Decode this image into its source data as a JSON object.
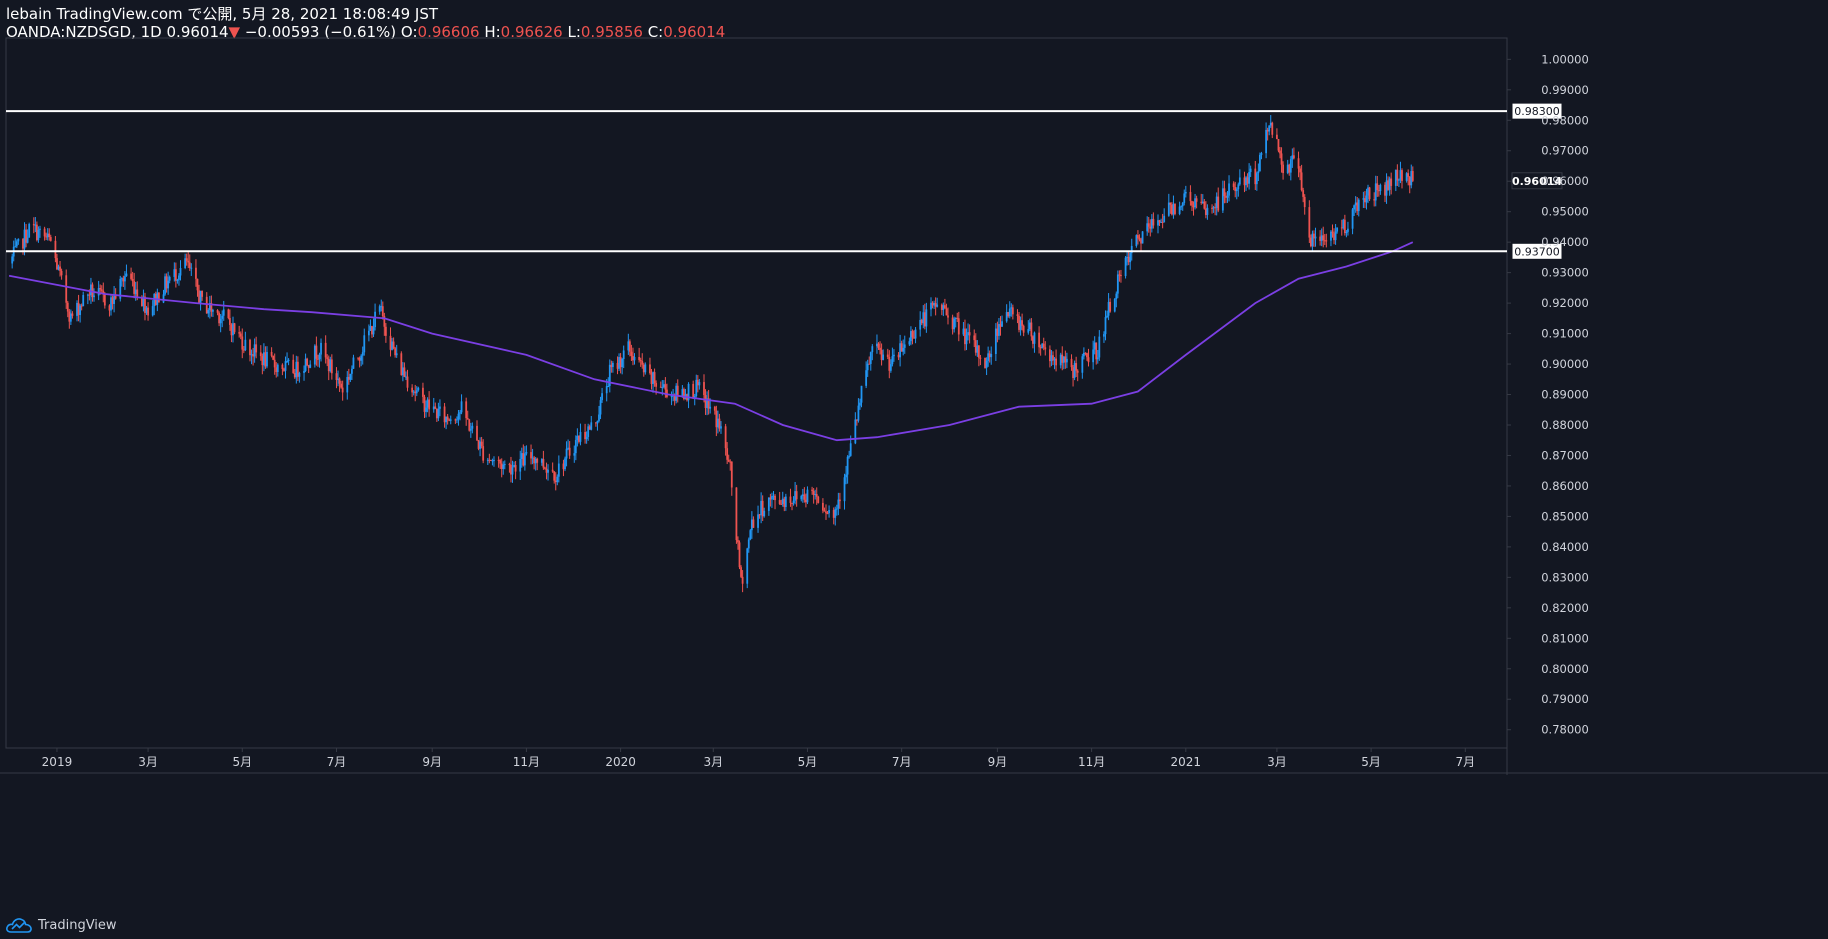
{
  "header": {
    "line1": "lebain TradingView.com で公開, 5月 28, 2021 18:08:49 JST",
    "symbol_text": "OANDA:NZDSGD, 1D 0.96014",
    "down_icon": "▼",
    "change_text": " −0.00593 (−0.61%)",
    "o_label": " O:",
    "o_value": "0.96606",
    "h_label": " H:",
    "h_value": "0.96626",
    "l_label": " L:",
    "l_value": "0.95856",
    "c_label": " C:",
    "c_value": "0.96014"
  },
  "footer": {
    "logo_icon": "tradingview-cloud-logo",
    "brand": "TradingView"
  },
  "colors": {
    "background": "#131722",
    "up": "#2196f3",
    "down": "#ef5350",
    "ma": "#7b3fe4",
    "hline": "#ffffff",
    "axis_text": "#d1d4dc",
    "border": "#363a45"
  },
  "chart_data": {
    "type": "candlestick",
    "symbol": "OANDA:NZDSGD",
    "interval": "1D",
    "ylim": [
      0.774,
      1.007
    ],
    "xlim": [
      "2018-11-29",
      "2021-07-28"
    ],
    "y_ticks": [
      "0.78000",
      "0.79000",
      "0.80000",
      "0.81000",
      "0.82000",
      "0.83000",
      "0.84000",
      "0.85000",
      "0.86000",
      "0.87000",
      "0.88000",
      "0.89000",
      "0.90000",
      "0.91000",
      "0.92000",
      "0.93000",
      "0.94000",
      "0.95000",
      "0.96000",
      "0.97000",
      "0.98000",
      "0.99000",
      "1.00000"
    ],
    "x_ticks": [
      {
        "date": "2019-01-01",
        "label": "2019"
      },
      {
        "date": "2019-03-01",
        "label": "3月"
      },
      {
        "date": "2019-05-01",
        "label": "5月"
      },
      {
        "date": "2019-07-01",
        "label": "7月"
      },
      {
        "date": "2019-09-01",
        "label": "9月"
      },
      {
        "date": "2019-11-01",
        "label": "11月"
      },
      {
        "date": "2020-01-01",
        "label": "2020"
      },
      {
        "date": "2020-03-01",
        "label": "3月"
      },
      {
        "date": "2020-05-01",
        "label": "5月"
      },
      {
        "date": "2020-07-01",
        "label": "7月"
      },
      {
        "date": "2020-09-01",
        "label": "9月"
      },
      {
        "date": "2020-11-01",
        "label": "11月"
      },
      {
        "date": "2021-01-01",
        "label": "2021"
      },
      {
        "date": "2021-03-01",
        "label": "3月"
      },
      {
        "date": "2021-05-01",
        "label": "5月"
      },
      {
        "date": "2021-07-01",
        "label": "7月"
      }
    ],
    "horizontal_lines": [
      {
        "value": 0.983,
        "label": "0.98300"
      },
      {
        "value": 0.937,
        "label": "0.93700"
      }
    ],
    "last_price": {
      "value": 0.96014,
      "label": "0.96014"
    },
    "anchors": [
      [
        "2018-12-01",
        0.933
      ],
      [
        "2018-12-15",
        0.945
      ],
      [
        "2018-12-28",
        0.94
      ],
      [
        "2019-01-10",
        0.915
      ],
      [
        "2019-01-22",
        0.924
      ],
      [
        "2019-02-05",
        0.92
      ],
      [
        "2019-02-15",
        0.93
      ],
      [
        "2019-03-01",
        0.918
      ],
      [
        "2019-03-15",
        0.928
      ],
      [
        "2019-03-26",
        0.933
      ],
      [
        "2019-04-05",
        0.92
      ],
      [
        "2019-04-20",
        0.915
      ],
      [
        "2019-05-05",
        0.905
      ],
      [
        "2019-05-20",
        0.9
      ],
      [
        "2019-06-05",
        0.898
      ],
      [
        "2019-06-20",
        0.905
      ],
      [
        "2019-07-05",
        0.892
      ],
      [
        "2019-07-20",
        0.908
      ],
      [
        "2019-07-29",
        0.918
      ],
      [
        "2019-08-10",
        0.9
      ],
      [
        "2019-08-25",
        0.888
      ],
      [
        "2019-09-10",
        0.882
      ],
      [
        "2019-09-20",
        0.885
      ],
      [
        "2019-10-05",
        0.87
      ],
      [
        "2019-10-20",
        0.866
      ],
      [
        "2019-11-05",
        0.87
      ],
      [
        "2019-11-20",
        0.864
      ],
      [
        "2019-12-05",
        0.876
      ],
      [
        "2019-12-15",
        0.88
      ],
      [
        "2019-12-25",
        0.897
      ],
      [
        "2020-01-06",
        0.905
      ],
      [
        "2020-01-20",
        0.895
      ],
      [
        "2020-02-05",
        0.89
      ],
      [
        "2020-02-20",
        0.892
      ],
      [
        "2020-03-05",
        0.88
      ],
      [
        "2020-03-12",
        0.865
      ],
      [
        "2020-03-19",
        0.828
      ],
      [
        "2020-03-26",
        0.848
      ],
      [
        "2020-04-05",
        0.855
      ],
      [
        "2020-04-20",
        0.856
      ],
      [
        "2020-05-05",
        0.858
      ],
      [
        "2020-05-18",
        0.85
      ],
      [
        "2020-05-28",
        0.87
      ],
      [
        "2020-06-05",
        0.89
      ],
      [
        "2020-06-12",
        0.905
      ],
      [
        "2020-06-25",
        0.9
      ],
      [
        "2020-07-10",
        0.912
      ],
      [
        "2020-07-25",
        0.92
      ],
      [
        "2020-08-10",
        0.91
      ],
      [
        "2020-08-25",
        0.9
      ],
      [
        "2020-09-05",
        0.918
      ],
      [
        "2020-09-20",
        0.912
      ],
      [
        "2020-10-05",
        0.903
      ],
      [
        "2020-10-20",
        0.898
      ],
      [
        "2020-11-05",
        0.905
      ],
      [
        "2020-11-15",
        0.923
      ],
      [
        "2020-11-30",
        0.94
      ],
      [
        "2020-12-15",
        0.948
      ],
      [
        "2021-01-01",
        0.955
      ],
      [
        "2021-01-15",
        0.95
      ],
      [
        "2021-02-01",
        0.958
      ],
      [
        "2021-02-15",
        0.962
      ],
      [
        "2021-02-25",
        0.98
      ],
      [
        "2021-03-05",
        0.965
      ],
      [
        "2021-03-15",
        0.967
      ],
      [
        "2021-03-22",
        0.94
      ],
      [
        "2021-04-01",
        0.941
      ],
      [
        "2021-04-15",
        0.946
      ],
      [
        "2021-04-25",
        0.955
      ],
      [
        "2021-05-10",
        0.958
      ],
      [
        "2021-05-20",
        0.963
      ],
      [
        "2021-05-28",
        0.96
      ]
    ],
    "ma_points": [
      [
        "2018-12-01",
        0.929
      ],
      [
        "2019-02-01",
        0.923
      ],
      [
        "2019-04-01",
        0.92
      ],
      [
        "2019-05-15",
        0.918
      ],
      [
        "2019-06-15",
        0.917
      ],
      [
        "2019-08-01",
        0.915
      ],
      [
        "2019-09-01",
        0.91
      ],
      [
        "2019-11-01",
        0.903
      ],
      [
        "2019-12-15",
        0.895
      ],
      [
        "2020-02-01",
        0.89
      ],
      [
        "2020-03-15",
        0.887
      ],
      [
        "2020-04-15",
        0.88
      ],
      [
        "2020-05-20",
        0.875
      ],
      [
        "2020-06-15",
        0.876
      ],
      [
        "2020-08-01",
        0.88
      ],
      [
        "2020-09-15",
        0.886
      ],
      [
        "2020-11-01",
        0.887
      ],
      [
        "2020-12-01",
        0.891
      ],
      [
        "2021-01-01",
        0.903
      ],
      [
        "2021-02-15",
        0.92
      ],
      [
        "2021-03-15",
        0.928
      ],
      [
        "2021-04-15",
        0.932
      ],
      [
        "2021-05-15",
        0.937
      ],
      [
        "2021-05-28",
        0.94
      ]
    ]
  }
}
